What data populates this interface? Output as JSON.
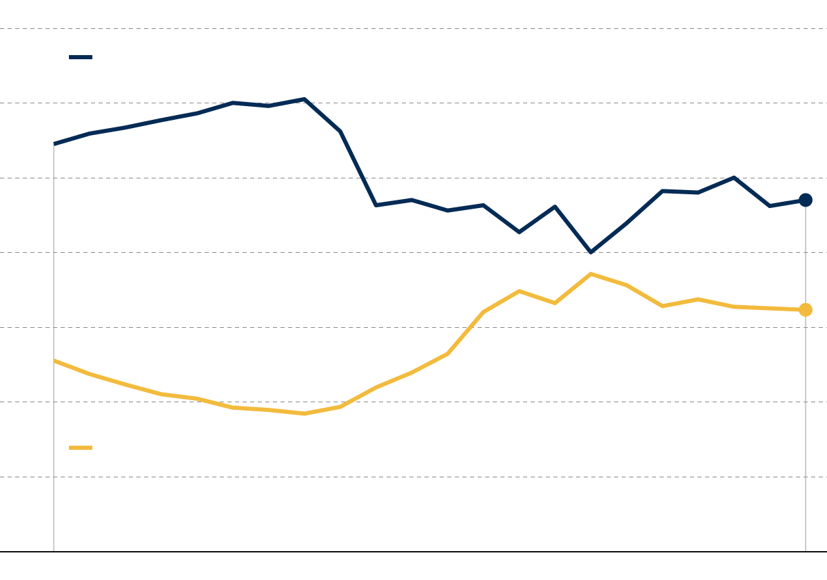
{
  "chart_data": {
    "type": "line",
    "title": "",
    "xlabel": "",
    "ylabel": "",
    "x": [
      1,
      2,
      3,
      4,
      5,
      6,
      7,
      8,
      9,
      10,
      11,
      12,
      13,
      14,
      15,
      16,
      17,
      18,
      19,
      20,
      21,
      22
    ],
    "ylim": [
      0,
      70
    ],
    "y_grid": [
      10,
      20,
      30,
      40,
      50,
      60,
      70
    ],
    "grid": true,
    "series": [
      {
        "name": "",
        "color": "#032b55",
        "values": [
          54.5,
          55.9,
          56.7,
          57.7,
          58.6,
          60.0,
          59.6,
          60.5,
          56.2,
          46.3,
          47.0,
          45.6,
          46.3,
          42.7,
          46.1,
          40.0,
          43.9,
          48.2,
          48.0,
          50.0,
          46.2,
          47.0
        ]
      },
      {
        "name": "",
        "color": "#f2bb3d",
        "values": [
          25.5,
          23.7,
          22.3,
          21.0,
          20.4,
          19.2,
          18.9,
          18.4,
          19.3,
          21.9,
          23.9,
          26.4,
          32.0,
          34.8,
          33.2,
          37.1,
          35.6,
          32.8,
          33.7,
          32.7,
          32.5,
          32.3
        ]
      }
    ]
  }
}
